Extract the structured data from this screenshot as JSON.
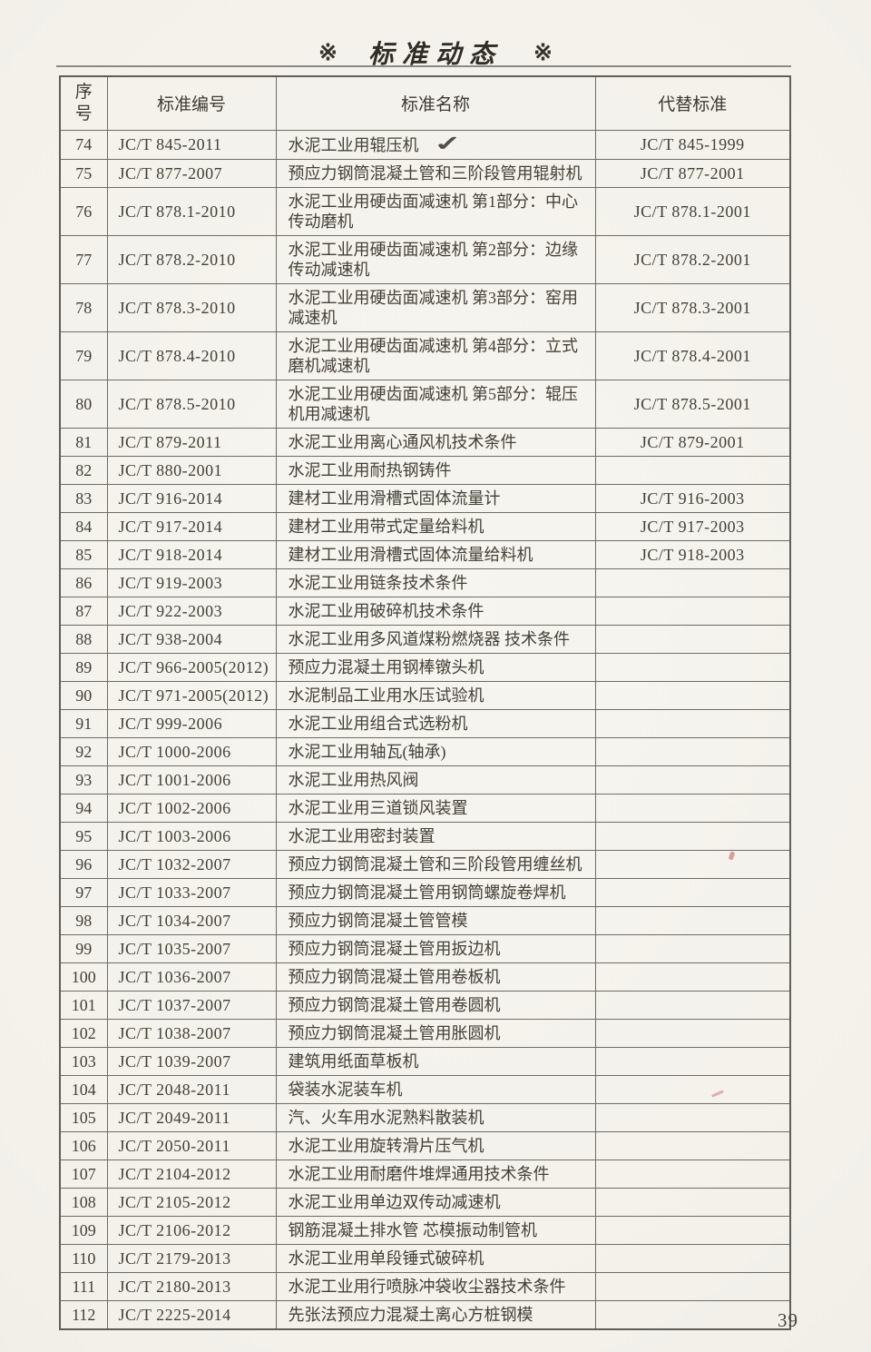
{
  "header": {
    "mark_left": "※",
    "title": "标准动态",
    "mark_right": "※"
  },
  "icons": {
    "checkmark": "✓",
    "reference_mark": "※"
  },
  "footer": {
    "page_number": "39"
  },
  "table": {
    "headers": [
      "序号",
      "标准编号",
      "标准名称",
      "代替标准"
    ],
    "rows": [
      {
        "no": "74",
        "code": "JC/T 845-2011",
        "name": "水泥工业用辊压机",
        "replaced": "JC/T 845-1999",
        "check": true
      },
      {
        "no": "75",
        "code": "JC/T 877-2007",
        "name": "预应力钢筒混凝土管和三阶段管用辊射机",
        "replaced": "JC/T 877-2001"
      },
      {
        "no": "76",
        "code": "JC/T 878.1-2010",
        "name": "水泥工业用硬齿面减速机 第1部分：中心传动磨机",
        "replaced": "JC/T 878.1-2001"
      },
      {
        "no": "77",
        "code": "JC/T 878.2-2010",
        "name": "水泥工业用硬齿面减速机 第2部分：边缘传动减速机",
        "replaced": "JC/T 878.2-2001"
      },
      {
        "no": "78",
        "code": "JC/T 878.3-2010",
        "name": "水泥工业用硬齿面减速机 第3部分：窑用减速机",
        "replaced": "JC/T 878.3-2001"
      },
      {
        "no": "79",
        "code": "JC/T 878.4-2010",
        "name": "水泥工业用硬齿面减速机 第4部分：立式磨机减速机",
        "replaced": "JC/T 878.4-2001"
      },
      {
        "no": "80",
        "code": "JC/T 878.5-2010",
        "name": "水泥工业用硬齿面减速机 第5部分：辊压机用减速机",
        "replaced": "JC/T 878.5-2001"
      },
      {
        "no": "81",
        "code": "JC/T 879-2011",
        "name": "水泥工业用离心通风机技术条件",
        "replaced": "JC/T 879-2001"
      },
      {
        "no": "82",
        "code": "JC/T 880-2001",
        "name": "水泥工业用耐热钢铸件",
        "replaced": ""
      },
      {
        "no": "83",
        "code": "JC/T 916-2014",
        "name": "建材工业用滑槽式固体流量计",
        "replaced": "JC/T 916-2003"
      },
      {
        "no": "84",
        "code": "JC/T 917-2014",
        "name": "建材工业用带式定量给料机",
        "replaced": "JC/T 917-2003"
      },
      {
        "no": "85",
        "code": "JC/T 918-2014",
        "name": "建材工业用滑槽式固体流量给料机",
        "replaced": "JC/T 918-2003"
      },
      {
        "no": "86",
        "code": "JC/T 919-2003",
        "name": "水泥工业用链条技术条件",
        "replaced": ""
      },
      {
        "no": "87",
        "code": "JC/T 922-2003",
        "name": "水泥工业用破碎机技术条件",
        "replaced": ""
      },
      {
        "no": "88",
        "code": "JC/T 938-2004",
        "name": "水泥工业用多风道煤粉燃烧器 技术条件",
        "replaced": ""
      },
      {
        "no": "89",
        "code": "JC/T 966-2005(2012)",
        "name": "预应力混凝土用钢棒镦头机",
        "replaced": ""
      },
      {
        "no": "90",
        "code": "JC/T 971-2005(2012)",
        "name": "水泥制品工业用水压试验机",
        "replaced": ""
      },
      {
        "no": "91",
        "code": "JC/T 999-2006",
        "name": "水泥工业用组合式选粉机",
        "replaced": ""
      },
      {
        "no": "92",
        "code": "JC/T 1000-2006",
        "name": "水泥工业用轴瓦(轴承)",
        "replaced": ""
      },
      {
        "no": "93",
        "code": "JC/T 1001-2006",
        "name": "水泥工业用热风阀",
        "replaced": ""
      },
      {
        "no": "94",
        "code": "JC/T 1002-2006",
        "name": "水泥工业用三道锁风装置",
        "replaced": ""
      },
      {
        "no": "95",
        "code": "JC/T 1003-2006",
        "name": "水泥工业用密封装置",
        "replaced": ""
      },
      {
        "no": "96",
        "code": "JC/T 1032-2007",
        "name": "预应力钢筒混凝土管和三阶段管用缠丝机",
        "replaced": ""
      },
      {
        "no": "97",
        "code": "JC/T 1033-2007",
        "name": "预应力钢筒混凝土管用钢筒螺旋卷焊机",
        "replaced": ""
      },
      {
        "no": "98",
        "code": "JC/T 1034-2007",
        "name": "预应力钢筒混凝土管管模",
        "replaced": ""
      },
      {
        "no": "99",
        "code": "JC/T 1035-2007",
        "name": "预应力钢筒混凝土管用扳边机",
        "replaced": ""
      },
      {
        "no": "100",
        "code": "JC/T 1036-2007",
        "name": "预应力钢筒混凝土管用卷板机",
        "replaced": ""
      },
      {
        "no": "101",
        "code": "JC/T 1037-2007",
        "name": "预应力钢筒混凝土管用卷圆机",
        "replaced": ""
      },
      {
        "no": "102",
        "code": "JC/T 1038-2007",
        "name": "预应力钢筒混凝土管用胀圆机",
        "replaced": ""
      },
      {
        "no": "103",
        "code": "JC/T 1039-2007",
        "name": "建筑用纸面草板机",
        "replaced": ""
      },
      {
        "no": "104",
        "code": "JC/T 2048-2011",
        "name": "袋装水泥装车机",
        "replaced": ""
      },
      {
        "no": "105",
        "code": "JC/T 2049-2011",
        "name": "汽、火车用水泥熟料散装机",
        "replaced": ""
      },
      {
        "no": "106",
        "code": "JC/T 2050-2011",
        "name": "水泥工业用旋转滑片压气机",
        "replaced": ""
      },
      {
        "no": "107",
        "code": "JC/T 2104-2012",
        "name": "水泥工业用耐磨件堆焊通用技术条件",
        "replaced": ""
      },
      {
        "no": "108",
        "code": "JC/T 2105-2012",
        "name": "水泥工业用单边双传动减速机",
        "replaced": ""
      },
      {
        "no": "109",
        "code": "JC/T 2106-2012",
        "name": "钢筋混凝土排水管 芯模振动制管机",
        "replaced": ""
      },
      {
        "no": "110",
        "code": "JC/T 2179-2013",
        "name": "水泥工业用单段锤式破碎机",
        "replaced": ""
      },
      {
        "no": "111",
        "code": "JC/T 2180-2013",
        "name": "水泥工业用行喷脉冲袋收尘器技术条件",
        "replaced": ""
      },
      {
        "no": "112",
        "code": "JC/T 2225-2014",
        "name": "先张法预应力混凝土离心方桩钢模",
        "replaced": ""
      }
    ]
  }
}
